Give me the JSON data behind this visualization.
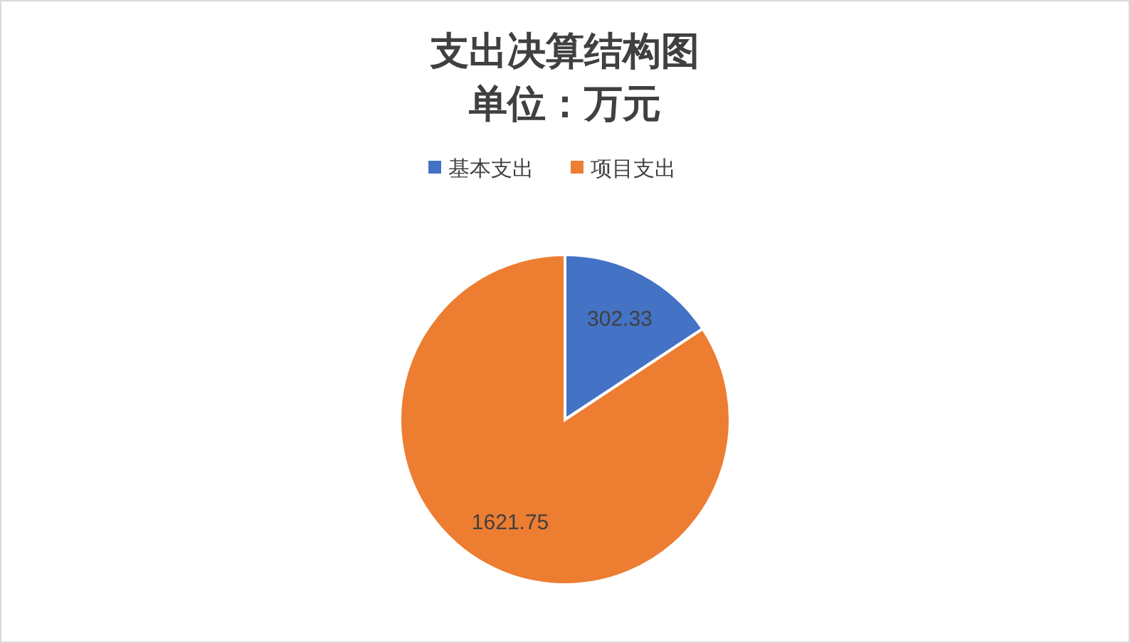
{
  "chart_data": {
    "type": "pie",
    "title": "支出决算结构图",
    "subtitle": "单位：万元",
    "categories": [
      "基本支出",
      "项目支出"
    ],
    "values": [
      302.33,
      1621.75
    ],
    "colors": [
      "#4472c4",
      "#ed7d31"
    ],
    "data_labels": true,
    "legend": "top"
  }
}
